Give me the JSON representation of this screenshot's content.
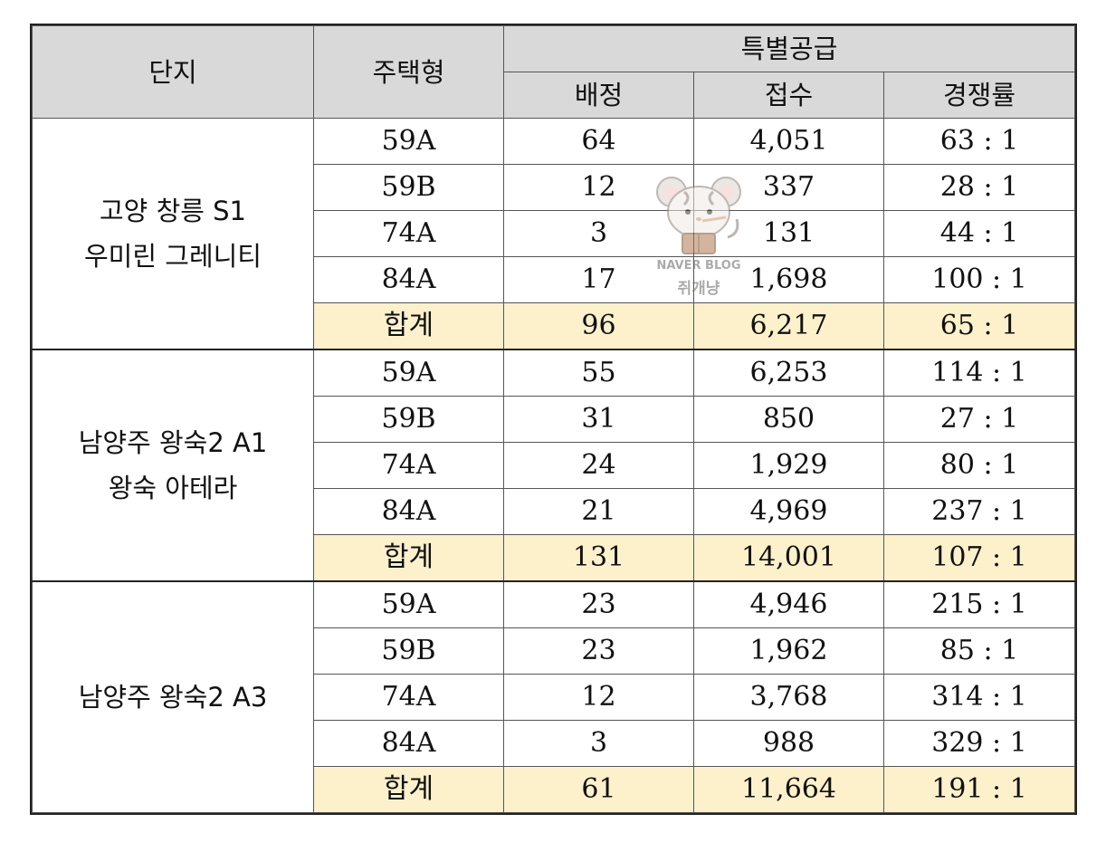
{
  "header": {
    "complex": "단지",
    "housing_type": "주택형",
    "special_supply": "특별공급",
    "allocation": "배정",
    "applications": "접수",
    "competition_rate": "경쟁률"
  },
  "groups": [
    {
      "complex_line1": "고양 창릉 S1",
      "complex_line2": "우미린 그레니티",
      "rows": [
        {
          "type": "59A",
          "allocation": "64",
          "applications": "4,051",
          "rate": "63 : 1"
        },
        {
          "type": "59B",
          "allocation": "12",
          "applications": "337",
          "rate": "28 : 1"
        },
        {
          "type": "74A",
          "allocation": "3",
          "applications": "131",
          "rate": "44 : 1"
        },
        {
          "type": "84A",
          "allocation": "17",
          "applications": "1,698",
          "rate": "100 : 1"
        }
      ],
      "total": {
        "label": "합계",
        "allocation": "96",
        "applications": "6,217",
        "rate": "65 : 1"
      }
    },
    {
      "complex_line1": "남양주 왕숙2 A1",
      "complex_line2": "왕숙 아테라",
      "rows": [
        {
          "type": "59A",
          "allocation": "55",
          "applications": "6,253",
          "rate": "114 : 1"
        },
        {
          "type": "59B",
          "allocation": "31",
          "applications": "850",
          "rate": "27 : 1"
        },
        {
          "type": "74A",
          "allocation": "24",
          "applications": "1,929",
          "rate": "80 : 1"
        },
        {
          "type": "84A",
          "allocation": "21",
          "applications": "4,969",
          "rate": "237 : 1"
        }
      ],
      "total": {
        "label": "합계",
        "allocation": "131",
        "applications": "14,001",
        "rate": "107 : 1"
      }
    },
    {
      "complex_line1": "남양주 왕숙2 A3",
      "complex_line2": "",
      "rows": [
        {
          "type": "59A",
          "allocation": "23",
          "applications": "4,946",
          "rate": "215 : 1"
        },
        {
          "type": "59B",
          "allocation": "23",
          "applications": "1,962",
          "rate": "85 : 1"
        },
        {
          "type": "74A",
          "allocation": "12",
          "applications": "3,768",
          "rate": "314 : 1"
        },
        {
          "type": "84A",
          "allocation": "3",
          "applications": "988",
          "rate": "329 : 1"
        }
      ],
      "total": {
        "label": "합계",
        "allocation": "61",
        "applications": "11,664",
        "rate": "191 : 1"
      }
    }
  ],
  "watermark": {
    "icon": "mouse-reading-book-icon",
    "line1": "NAVER BLOG",
    "line2": "쥐개냥"
  }
}
